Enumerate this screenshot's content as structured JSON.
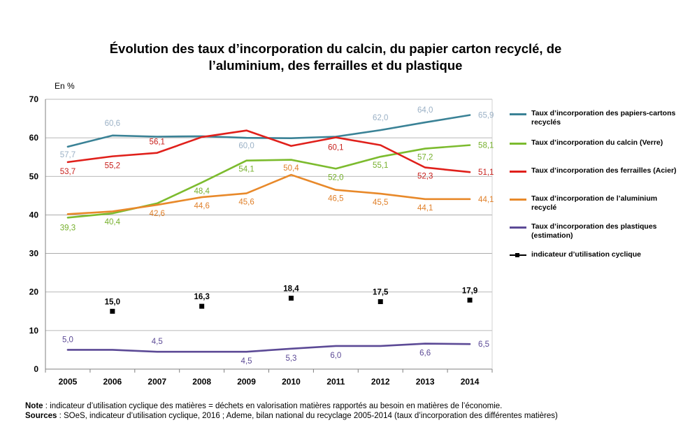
{
  "title_line1": "Évolution des taux d’incorporation du calcin, du papier carton recyclé, de",
  "title_line2": "l’aluminium, des ferrailles et du plastique",
  "unit_label": "En %",
  "chart_data": {
    "type": "line",
    "categories": [
      "2005",
      "2006",
      "2007",
      "2008",
      "2009",
      "2010",
      "2011",
      "2012",
      "2013",
      "2014"
    ],
    "ylim": [
      0,
      70
    ],
    "yticks": [
      0,
      10,
      20,
      30,
      40,
      50,
      60,
      70
    ],
    "grid": true,
    "legend_position": "right",
    "series": [
      {
        "name": "Taux d’incorporation des papiers-cartons recyclés",
        "color": "#3A8296",
        "label_color": "#9BB1C6",
        "values": [
          57.7,
          60.6,
          60.3,
          60.4,
          60.0,
          59.9,
          60.3,
          62.0,
          64.0,
          65.9
        ],
        "labels": {
          "0": "57,7",
          "1": "60,6",
          "4": "60,0",
          "7": "62,0",
          "8": "64,0",
          "9": "65,9"
        }
      },
      {
        "name": "Taux d’incorporation du calcin (Verre)",
        "color": "#7CBB2E",
        "label_color": "#76B02C",
        "values": [
          39.3,
          40.4,
          43.0,
          48.4,
          54.1,
          54.3,
          52.0,
          55.1,
          57.2,
          58.1
        ],
        "labels": {
          "0": "39,3",
          "1": "40,4",
          "3": "48,4",
          "4": "54,1",
          "6": "52,0",
          "7": "55,1",
          "8": "57,2",
          "9": "58,1"
        }
      },
      {
        "name": "Taux d’incorporation des ferrailles (Acier)",
        "color": "#E0201B",
        "label_color": "#C8201C",
        "values": [
          53.7,
          55.2,
          56.1,
          60.2,
          61.9,
          57.9,
          60.1,
          58.1,
          52.3,
          51.1
        ],
        "labels": {
          "0": "53,7",
          "1": "55,2",
          "2": "56,1",
          "6": "60,1",
          "8": "52,3",
          "9": "51,1"
        }
      },
      {
        "name": "Taux d’incorporation de l’aluminium recyclé",
        "color": "#E8892A",
        "label_color": "#E0802A",
        "values": [
          40.2,
          40.9,
          42.6,
          44.6,
          45.6,
          50.4,
          46.5,
          45.5,
          44.1,
          44.1
        ],
        "labels": {
          "2": "42,6",
          "3": "44,6",
          "4": "45,6",
          "5": "50,4",
          "6": "46,5",
          "7": "45,5",
          "8": "44,1",
          "9": "44,1"
        }
      },
      {
        "name": "Taux d’incorporation des plastiques (estimation)",
        "color": "#5C4A96",
        "label_color": "#5C4A96",
        "values": [
          5.0,
          5.0,
          4.5,
          4.5,
          4.5,
          5.3,
          6.0,
          6.0,
          6.6,
          6.5
        ],
        "labels": {
          "0": "5,0",
          "2": "4,5",
          "4": "4,5",
          "5": "5,3",
          "6": "6,0",
          "8": "6,6",
          "9": "6,5"
        }
      },
      {
        "name": "indicateur d’utilisation cyclique",
        "type": "scatter",
        "color": "#000000",
        "label_color": "#000000",
        "x": [
          "2006",
          "2008",
          "2010",
          "2012",
          "2014"
        ],
        "values": [
          15.0,
          16.3,
          18.4,
          17.5,
          17.9
        ],
        "labels": [
          "15,0",
          "16,3",
          "18,4",
          "17,5",
          "17,9"
        ]
      }
    ]
  },
  "notes": {
    "note_label": "Note",
    "note_text": " : indicateur d’utilisation cyclique des matières = déchets en valorisation  matières rapportés au besoin en matières de l’économie.",
    "sources_label": "Sources",
    "sources_text": " : SOeS, indicateur d’utilisation cyclique, 2016 ; Ademe, bilan national du recyclage 2005-2014  (taux d’incorporation  des différentes  matières)"
  }
}
